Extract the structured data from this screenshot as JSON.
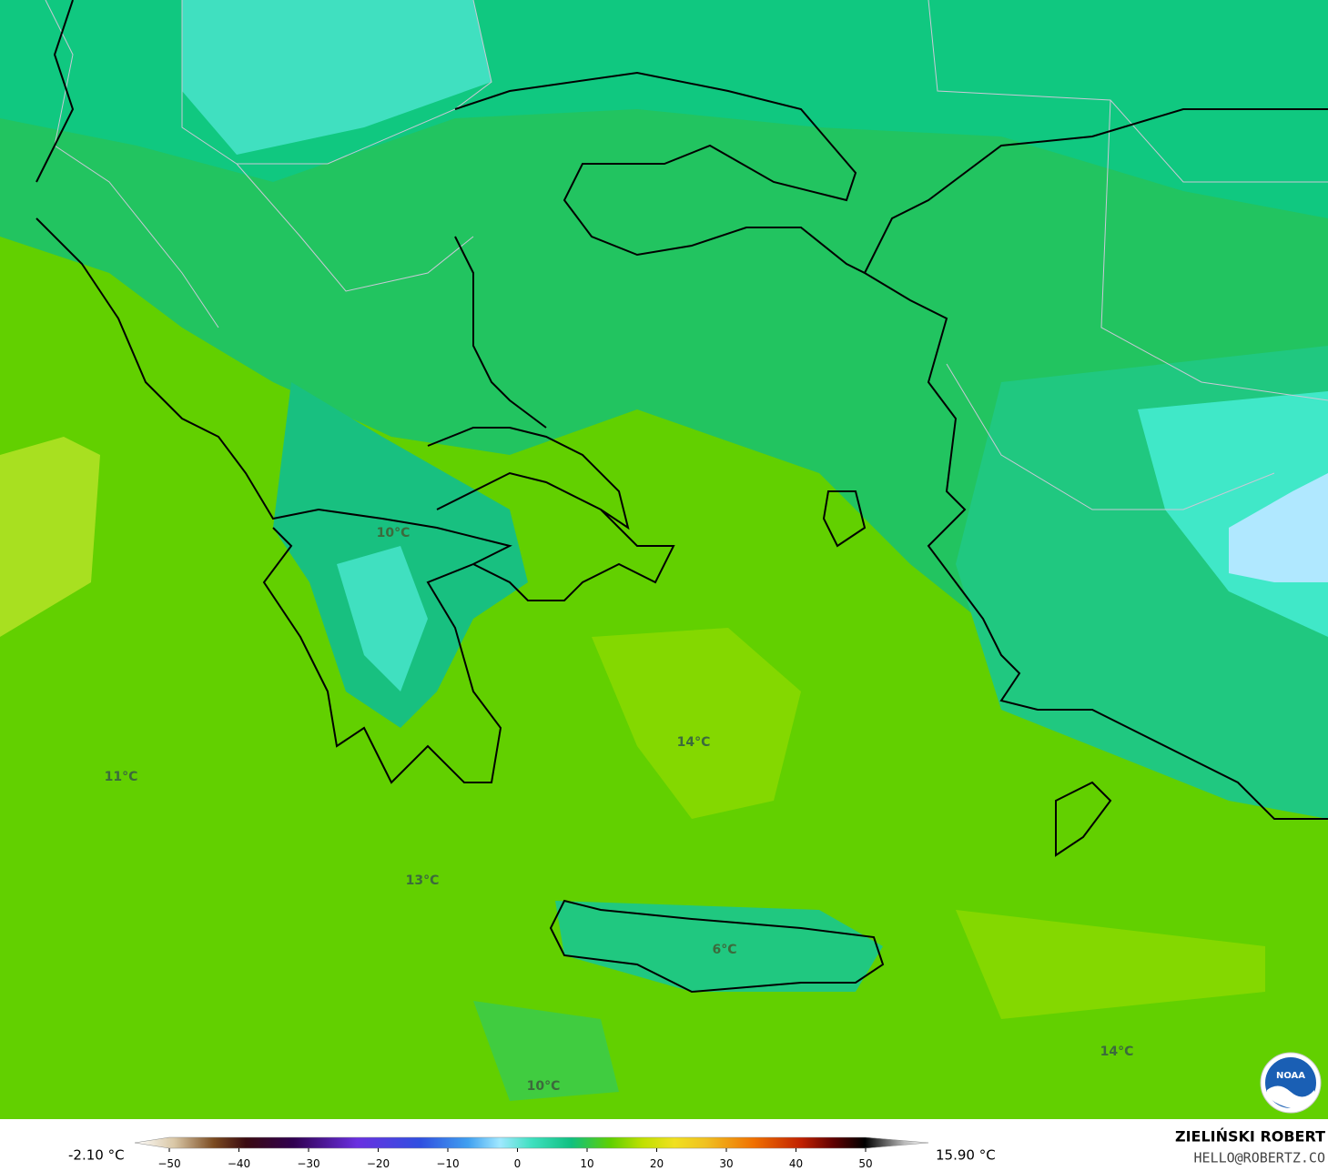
{
  "map": {
    "labels": [
      "10°C",
      "14°C",
      "11°C",
      "13°C",
      "6°C",
      "14°C",
      "10°C"
    ],
    "logo": "NOAA"
  },
  "colorbar": {
    "min_label": "-2.10 °C",
    "max_label": "15.90 °C",
    "ticks": [
      {
        "value": -50,
        "label": "−50"
      },
      {
        "value": -40,
        "label": "−40"
      },
      {
        "value": -30,
        "label": "−30"
      },
      {
        "value": -20,
        "label": "−20"
      },
      {
        "value": -10,
        "label": "−10"
      },
      0,
      10,
      20,
      30,
      40,
      50
    ]
  },
  "credits": {
    "author": "ZIELIŃSKI ROBERT",
    "email": "HELLO@ROBERTZ.CO"
  }
}
